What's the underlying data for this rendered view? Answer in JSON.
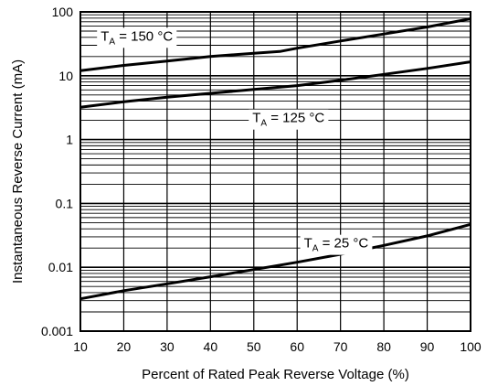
{
  "chart_data": {
    "type": "line",
    "xlabel": "Percent of Rated Peak Reverse Voltage (%)",
    "ylabel": "Instantaneous Reverse Current (mA)",
    "xlim": [
      10,
      100
    ],
    "ylim": [
      0.001,
      100
    ],
    "yscale": "log",
    "grid": true,
    "x_ticks": [
      10,
      20,
      30,
      40,
      50,
      60,
      70,
      80,
      90,
      100
    ],
    "x_tick_labels": [
      "10",
      "20",
      "30",
      "40",
      "50",
      "60",
      "70",
      "80",
      "90",
      "100"
    ],
    "y_ticks": [
      0.001,
      0.01,
      0.1,
      1,
      10,
      100
    ],
    "y_tick_labels": [
      "0.001",
      "0.01",
      "0.1",
      "1",
      "10",
      "100"
    ],
    "series": [
      {
        "x": [
          10,
          20,
          30,
          40,
          50,
          56,
          60,
          70,
          80,
          90,
          100
        ],
        "y": [
          12,
          14.5,
          17,
          20,
          22.5,
          24,
          27,
          35,
          45,
          58,
          78
        ]
      },
      {
        "x": [
          10,
          20,
          30,
          40,
          50,
          60,
          70,
          80,
          90,
          100
        ],
        "y": [
          3.2,
          3.9,
          4.6,
          5.3,
          6.1,
          7.0,
          8.5,
          10.5,
          13,
          16.5
        ]
      },
      {
        "x": [
          10,
          20,
          30,
          40,
          50,
          60,
          70,
          80,
          90,
          100
        ],
        "y": [
          0.0032,
          0.0043,
          0.0055,
          0.0071,
          0.0092,
          0.012,
          0.016,
          0.022,
          0.031,
          0.047
        ]
      }
    ],
    "annotations": [
      {
        "main": "T",
        "sub": "A",
        "rest": " = 150 °C",
        "x": 23,
        "y": 42
      },
      {
        "main": "T",
        "sub": "A",
        "rest": " = 125 °C",
        "x": 58,
        "y": 2.2
      },
      {
        "main": "T",
        "sub": "A",
        "rest": " = 25 °C",
        "x": 69,
        "y": 0.024
      }
    ]
  }
}
